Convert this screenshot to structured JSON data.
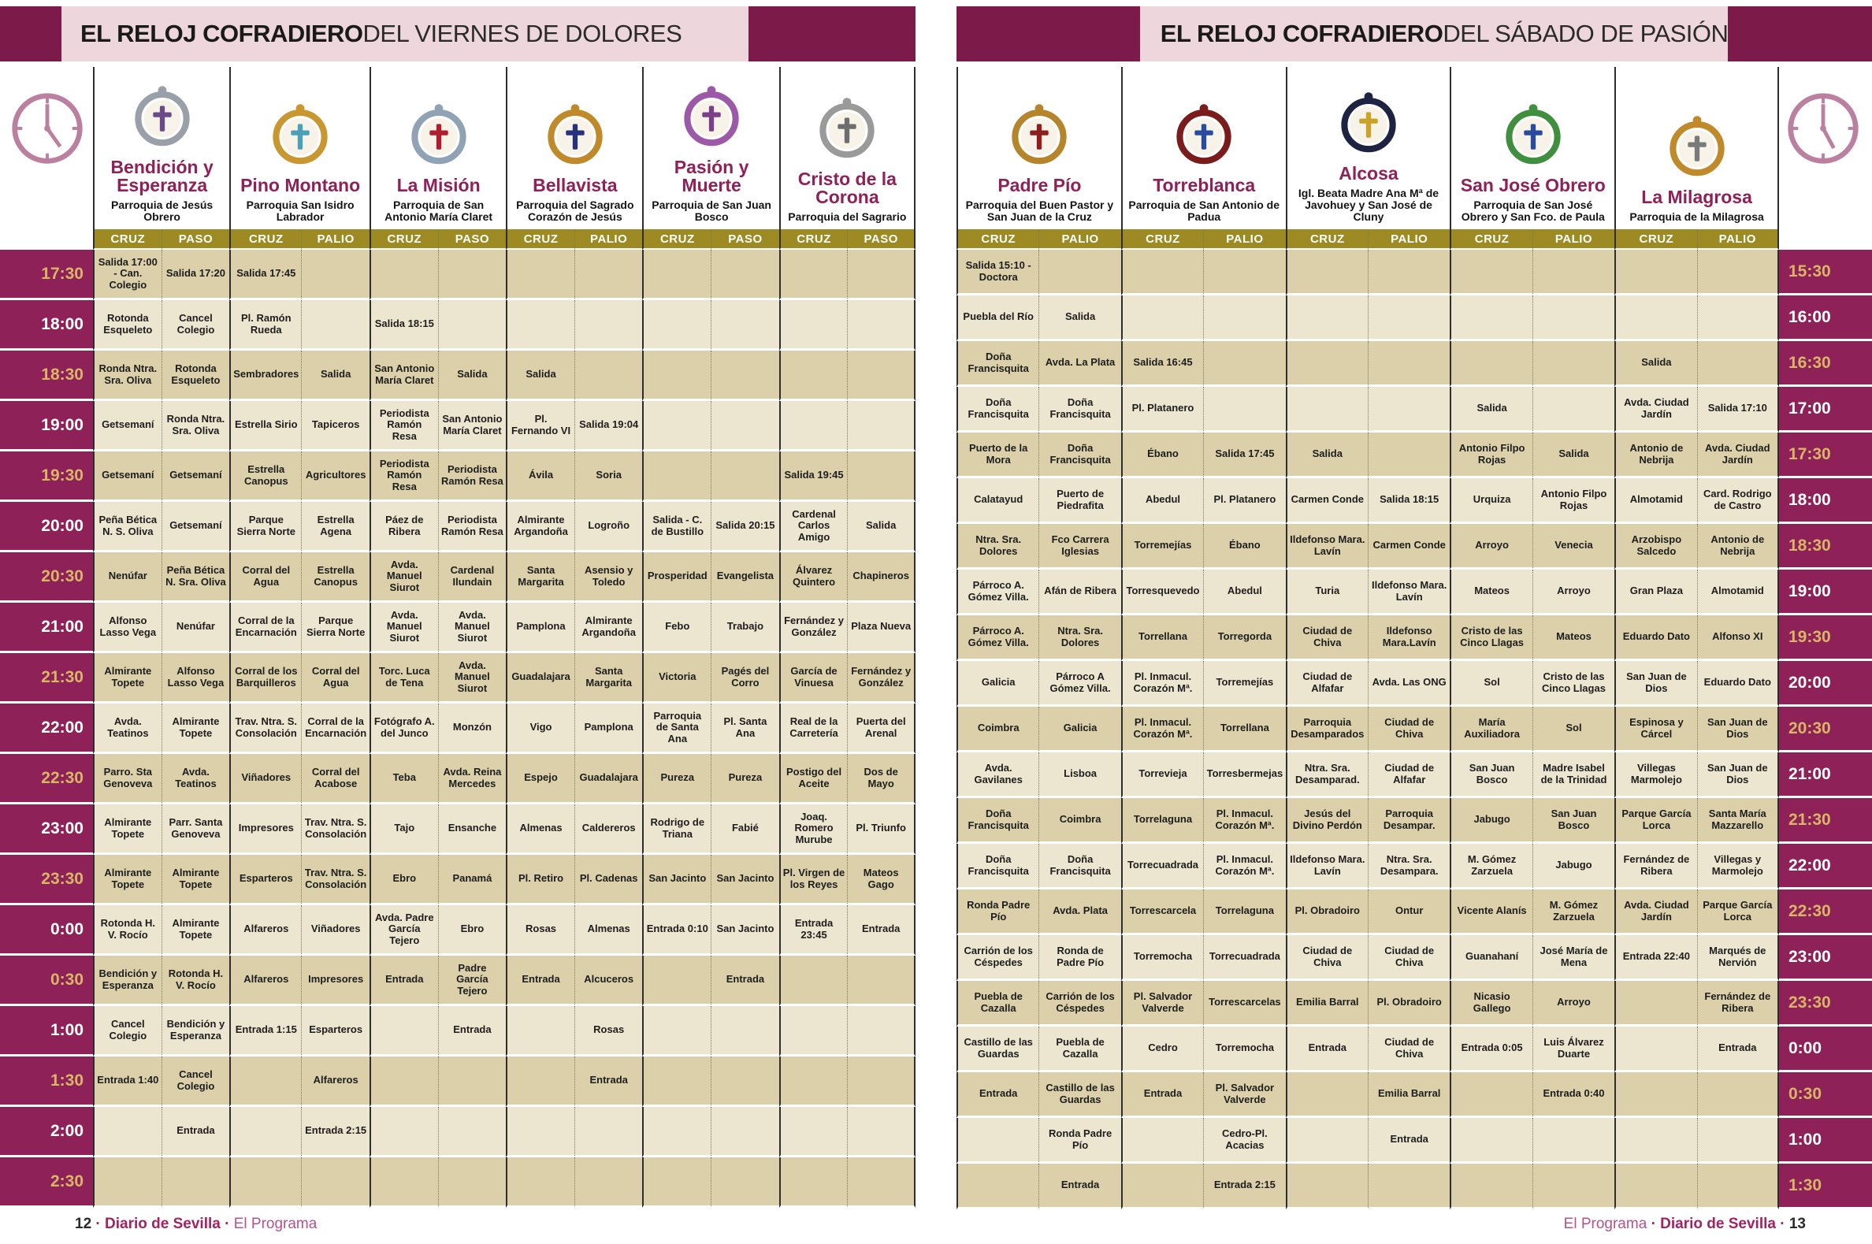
{
  "colors": {
    "maroon": "#7c1a49",
    "pink_band": "#eed7dc",
    "magenta_accent": "#8e2157",
    "olive_header": "#9d8a23",
    "row_dark": "#dbd0a9",
    "row_light": "#ece6d0",
    "time_gold": "#d9b566",
    "footer_magenta": "#a32361"
  },
  "footers": {
    "left": {
      "page": "12",
      "brand": "Diario de Sevilla",
      "section": "El Programa"
    },
    "right": {
      "page": "13",
      "brand": "Diario de Sevilla",
      "section": "El Programa"
    }
  },
  "pages": [
    {
      "id": "viernes-dolores",
      "icon": "clock-icon",
      "time_side": "left",
      "title_bold": "EL RELOJ COFRADIERO",
      "title_rest": " DEL VIERNES DE DOLORES",
      "columns": [
        {
          "name": "Bendición y Esperanza",
          "parish": "Parroquia de Jesús Obrero",
          "sub": [
            "CRUZ",
            "PASO"
          ],
          "crest_colors": [
            "#9aa0a8",
            "#6a4b8a"
          ]
        },
        {
          "name": "Pino Montano",
          "parish": "Parroquia San Isidro Labrador",
          "sub": [
            "CRUZ",
            "PALIO"
          ],
          "crest_colors": [
            "#c9972f",
            "#4aa0b5"
          ]
        },
        {
          "name": "La Misión",
          "parish": "Parroquia de San Antonio María Claret",
          "sub": [
            "CRUZ",
            "PASO"
          ],
          "crest_colors": [
            "#8fa3b5",
            "#b01e2e"
          ]
        },
        {
          "name": "Bellavista",
          "parish": "Parroquia del Sagrado Corazón de Jesús",
          "sub": [
            "CRUZ",
            "PALIO"
          ],
          "crest_colors": [
            "#c08a2a",
            "#28317e"
          ]
        },
        {
          "name": "Pasión y Muerte",
          "parish": "Parroquia de San Juan Bosco",
          "sub": [
            "CRUZ",
            "PASO"
          ],
          "crest_colors": [
            "#9b59a8",
            "#7a3f88"
          ]
        },
        {
          "name": "Cristo de la Corona",
          "parish": "Parroquia del Sagrario",
          "sub": [
            "CRUZ",
            "PASO"
          ],
          "crest_colors": [
            "#9a9a9a",
            "#6e6e6e"
          ]
        }
      ],
      "times": [
        "17:30",
        "18:00",
        "18:30",
        "19:00",
        "19:30",
        "20:00",
        "20:30",
        "21:00",
        "21:30",
        "22:00",
        "22:30",
        "23:00",
        "23:30",
        "0:00",
        "0:30",
        "1:00",
        "1:30",
        "2:00",
        "2:30"
      ],
      "rows": [
        [
          "Salida 17:00 - Can. Colegio",
          "Salida 17:20",
          "Salida 17:45",
          "",
          "",
          "",
          "",
          "",
          "",
          "",
          "",
          ""
        ],
        [
          "Rotonda Esqueleto",
          "Cancel Colegio",
          "Pl. Ramón Rueda",
          "",
          "Salida 18:15",
          "",
          "",
          "",
          "",
          "",
          "",
          ""
        ],
        [
          "Ronda Ntra. Sra. Oliva",
          "Rotonda Esqueleto",
          "Sembradores",
          "Salida",
          "San Antonio María Claret",
          "Salida",
          "Salida",
          "",
          "",
          "",
          "",
          ""
        ],
        [
          "Getsemaní",
          "Ronda Ntra. Sra. Oliva",
          "Estrella Sirio",
          "Tapiceros",
          "Periodista Ramón Resa",
          "San Antonio María Claret",
          "Pl. Fernando VI",
          "Salida 19:04",
          "",
          "",
          "",
          ""
        ],
        [
          "Getsemaní",
          "Getsemaní",
          "Estrella Canopus",
          "Agricultores",
          "Periodista Ramón Resa",
          "Periodista Ramón Resa",
          "Ávila",
          "Soria",
          "",
          "",
          "Salida 19:45",
          ""
        ],
        [
          "Peña Bética N. S. Oliva",
          "Getsemaní",
          "Parque Sierra Norte",
          "Estrella Agena",
          "Páez de Ribera",
          "Periodista Ramón Resa",
          "Almirante Argandoña",
          "Logroño",
          "Salida - C. de Bustillo",
          "Salida 20:15",
          "Cardenal Carlos Amigo",
          "Salida"
        ],
        [
          "Nenúfar",
          "Peña Bética N. Sra. Oliva",
          "Corral del Agua",
          "Estrella Canopus",
          "Avda. Manuel Siurot",
          "Cardenal Ilundain",
          "Santa Margarita",
          "Asensio y Toledo",
          "Prosperidad",
          "Evangelista",
          "Álvarez Quintero",
          "Chapineros"
        ],
        [
          "Alfonso Lasso Vega",
          "Nenúfar",
          "Corral de la Encarnación",
          "Parque Sierra Norte",
          "Avda. Manuel Siurot",
          "Avda. Manuel Siurot",
          "Pamplona",
          "Almirante Argandoña",
          "Febo",
          "Trabajo",
          "Fernández y González",
          "Plaza Nueva"
        ],
        [
          "Almirante Topete",
          "Alfonso Lasso Vega",
          "Corral de los Barquilleros",
          "Corral del Agua",
          "Torc. Luca de Tena",
          "Avda. Manuel Siurot",
          "Guadalajara",
          "Santa Margarita",
          "Victoria",
          "Pagés del Corro",
          "García de Vinuesa",
          "Fernández y González"
        ],
        [
          "Avda. Teatinos",
          "Almirante Topete",
          "Trav. Ntra. S. Consolación",
          "Corral de la Encarnación",
          "Fotógrafo A. del Junco",
          "Monzón",
          "Vigo",
          "Pamplona",
          "Parroquia de Santa Ana",
          "Pl. Santa Ana",
          "Real de la Carretería",
          "Puerta del Arenal"
        ],
        [
          "Parro. Sta Genoveva",
          "Avda. Teatinos",
          "Viñadores",
          "Corral del Acabose",
          "Teba",
          "Avda. Reina Mercedes",
          "Espejo",
          "Guadalajara",
          "Pureza",
          "Pureza",
          "Postigo del Aceite",
          "Dos de Mayo"
        ],
        [
          "Almirante Topete",
          "Parr. Santa Genoveva",
          "Impresores",
          "Trav. Ntra. S. Consolación",
          "Tajo",
          "Ensanche",
          "Almenas",
          "Caldereros",
          "Rodrigo de Triana",
          "Fabié",
          "Joaq. Romero Murube",
          "Pl. Triunfo"
        ],
        [
          "Almirante Topete",
          "Almirante Topete",
          "Esparteros",
          "Trav. Ntra. S. Consolación",
          "Ebro",
          "Panamá",
          "Pl. Retiro",
          "Pl. Cadenas",
          "San Jacinto",
          "San Jacinto",
          "Pl. Virgen de los Reyes",
          "Mateos Gago"
        ],
        [
          "Rotonda H. V. Rocío",
          "Almirante Topete",
          "Alfareros",
          "Viñadores",
          "Avda. Padre García Tejero",
          "Ebro",
          "Rosas",
          "Almenas",
          "Entrada 0:10",
          "San Jacinto",
          "Entrada 23:45",
          "Entrada"
        ],
        [
          "Bendición y Esperanza",
          "Rotonda H. V. Rocío",
          "Alfareros",
          "Impresores",
          "Entrada",
          "Padre García Tejero",
          "Entrada",
          "Alcuceros",
          "",
          "Entrada",
          "",
          ""
        ],
        [
          "Cancel Colegio",
          "Bendición y Esperanza",
          "Entrada 1:15",
          "Esparteros",
          "",
          "Entrada",
          "",
          "Rosas",
          "",
          "",
          "",
          ""
        ],
        [
          "Entrada 1:40",
          "Cancel Colegio",
          "",
          "Alfareros",
          "",
          "",
          "",
          "Entrada",
          "",
          "",
          "",
          ""
        ],
        [
          "",
          "Entrada",
          "",
          "Entrada 2:15",
          "",
          "",
          "",
          "",
          "",
          "",
          "",
          ""
        ],
        [
          "",
          "",
          "",
          "",
          "",
          "",
          "",
          "",
          "",
          "",
          "",
          ""
        ]
      ]
    },
    {
      "id": "sabado-pasion",
      "icon": "clock-icon",
      "time_side": "right",
      "title_bold": "EL RELOJ COFRADIERO",
      "title_rest": " DEL SÁBADO DE PASIÓN",
      "columns": [
        {
          "name": "Padre Pío",
          "parish": "Parroquia del Buen Pastor y San Juan de la Cruz",
          "sub": [
            "CRUZ",
            "PALIO"
          ],
          "crest_colors": [
            "#b5852c",
            "#8e1f1f"
          ]
        },
        {
          "name": "Torreblanca",
          "parish": "Parroquia de San Antonio de Padua",
          "sub": [
            "CRUZ",
            "PALIO"
          ],
          "crest_colors": [
            "#7a1c1c",
            "#2a4aa0"
          ]
        },
        {
          "name": "Alcosa",
          "parish": "Igl. Beata Madre Ana Mª de Javohuey y San José de Cluny",
          "sub": [
            "CRUZ",
            "PALIO"
          ],
          "crest_colors": [
            "#1d2340",
            "#c9a227"
          ]
        },
        {
          "name": "San José Obrero",
          "parish": "Parroquia de San José Obrero y San Fco. de Paula",
          "sub": [
            "CRUZ",
            "PALIO"
          ],
          "crest_colors": [
            "#3f8f3f",
            "#2a4aa0"
          ]
        },
        {
          "name": "La Milagrosa",
          "parish": "Parroquia de la Milagrosa",
          "sub": [
            "CRUZ",
            "PALIO"
          ],
          "crest_colors": [
            "#c08a2a",
            "#7a7a7a"
          ]
        }
      ],
      "times": [
        "15:30",
        "16:00",
        "16:30",
        "17:00",
        "17:30",
        "18:00",
        "18:30",
        "19:00",
        "19:30",
        "20:00",
        "20:30",
        "21:00",
        "21:30",
        "22:00",
        "22:30",
        "23:00",
        "23:30",
        "0:00",
        "0:30",
        "1:00",
        "1:30"
      ],
      "rows": [
        [
          "Salida 15:10 - Doctora",
          "",
          "",
          "",
          "",
          "",
          "",
          "",
          "",
          ""
        ],
        [
          "Puebla del Río",
          "Salida",
          "",
          "",
          "",
          "",
          "",
          "",
          "",
          ""
        ],
        [
          "Doña Francisquita",
          "Avda. La Plata",
          "Salida 16:45",
          "",
          "",
          "",
          "",
          "",
          "Salida",
          ""
        ],
        [
          "Doña Francisquita",
          "Doña Francisquita",
          "Pl. Platanero",
          "",
          "",
          "",
          "Salida",
          "",
          "Avda. Ciudad Jardín",
          "Salida 17:10"
        ],
        [
          "Puerto de la Mora",
          "Doña Francisquita",
          "Ébano",
          "Salida 17:45",
          "Salida",
          "",
          "Antonio Filpo Rojas",
          "Salida",
          "Antonio de Nebrija",
          "Avda. Ciudad Jardín"
        ],
        [
          "Calatayud",
          "Puerto de Piedrafita",
          "Abedul",
          "Pl. Platanero",
          "Carmen Conde",
          "Salida 18:15",
          "Urquiza",
          "Antonio Filpo Rojas",
          "Almotamid",
          "Card. Rodrigo de Castro"
        ],
        [
          "Ntra. Sra. Dolores",
          "Fco Carrera Iglesias",
          "Torremejías",
          "Ébano",
          "Ildefonso Mara. Lavín",
          "Carmen Conde",
          "Arroyo",
          "Venecia",
          "Arzobispo Salcedo",
          "Antonio de Nebrija"
        ],
        [
          "Párroco A. Gómez Villa.",
          "Afán de Ribera",
          "Torresquevedo",
          "Abedul",
          "Turia",
          "Ildefonso Mara. Lavín",
          "Mateos",
          "Arroyo",
          "Gran Plaza",
          "Almotamid"
        ],
        [
          "Párroco A. Gómez Villa.",
          "Ntra. Sra. Dolores",
          "Torrellana",
          "Torregorda",
          "Ciudad de Chiva",
          "Ildefonso Mara.Lavín",
          "Cristo de las Cinco Llagas",
          "Mateos",
          "Eduardo Dato",
          "Alfonso XI"
        ],
        [
          "Galicia",
          "Párroco A Gómez Villa.",
          "Pl. Inmacul. Corazón Mª.",
          "Torremejías",
          "Ciudad de Alfafar",
          "Avda. Las ONG",
          "Sol",
          "Cristo de las Cinco Llagas",
          "San Juan de Dios",
          "Eduardo Dato"
        ],
        [
          "Coimbra",
          "Galicia",
          "Pl. Inmacul. Corazón Mª.",
          "Torrellana",
          "Parroquia Desamparados",
          "Ciudad de Chiva",
          "María Auxiliadora",
          "Sol",
          "Espinosa y Cárcel",
          "San Juan de Dios"
        ],
        [
          "Avda. Gavilanes",
          "Lisboa",
          "Torrevieja",
          "Torresbermejas",
          "Ntra. Sra. Desamparad.",
          "Ciudad de Alfafar",
          "San Juan Bosco",
          "Madre Isabel de la Trinidad",
          "Villegas Marmolejo",
          "San Juan de Dios"
        ],
        [
          "Doña Francisquita",
          "Coimbra",
          "Torrelaguna",
          "Pl. Inmacul. Corazón Mª.",
          "Jesús del Divino Perdón",
          "Parroquia Desampar.",
          "Jabugo",
          "San Juan Bosco",
          "Parque García Lorca",
          "Santa María Mazzarello"
        ],
        [
          "Doña Francisquita",
          "Doña Francisquita",
          "Torrecuadrada",
          "Pl. Inmacul. Corazón Mª.",
          "Ildefonso Mara. Lavín",
          "Ntra. Sra. Desampara.",
          "M. Gómez Zarzuela",
          "Jabugo",
          "Fernández de Ribera",
          "Villegas y Marmolejo"
        ],
        [
          "Ronda Padre Pío",
          "Avda. Plata",
          "Torrescarcela",
          "Torrelaguna",
          "Pl. Obradoiro",
          "Ontur",
          "Vicente Alanís",
          "M. Gómez Zarzuela",
          "Avda. Ciudad Jardín",
          "Parque García Lorca"
        ],
        [
          "Carrión de los Céspedes",
          "Ronda de Padre Pío",
          "Torremocha",
          "Torrecuadrada",
          "Ciudad de Chiva",
          "Ciudad de Chiva",
          "Guanahaní",
          "José María de Mena",
          "Entrada 22:40",
          "Marqués de Nervión"
        ],
        [
          "Puebla de Cazalla",
          "Carrión de los Céspedes",
          "Pl. Salvador Valverde",
          "Torrescarcelas",
          "Emilia Barral",
          "Pl. Obradoiro",
          "Nicasio Gallego",
          "Arroyo",
          "",
          "Fernández de Ribera"
        ],
        [
          "Castillo de las Guardas",
          "Puebla de Cazalla",
          "Cedro",
          "Torremocha",
          "Entrada",
          "Ciudad de Chiva",
          "Entrada 0:05",
          "Luis Álvarez Duarte",
          "",
          "Entrada"
        ],
        [
          "Entrada",
          "Castillo de las Guardas",
          "Entrada",
          "Pl. Salvador Valverde",
          "",
          "Emilia Barral",
          "",
          "Entrada 0:40",
          "",
          ""
        ],
        [
          "",
          "Ronda Padre Pío",
          "",
          "Cedro-Pl. Acacias",
          "",
          "Entrada",
          "",
          "",
          "",
          ""
        ],
        [
          "",
          "Entrada",
          "",
          "Entrada 2:15",
          "",
          "",
          "",
          "",
          "",
          ""
        ]
      ]
    }
  ]
}
